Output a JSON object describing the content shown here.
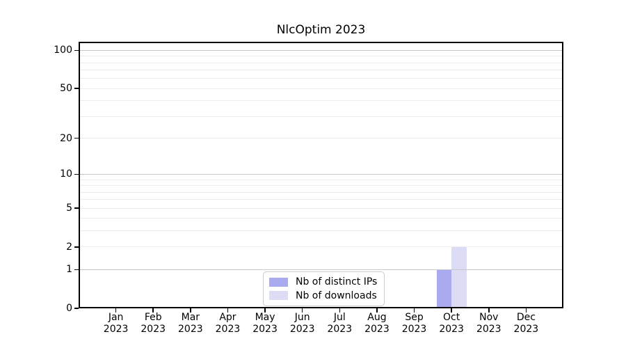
{
  "chart_data": {
    "type": "bar",
    "title": "NlcOptim 2023",
    "categories": [
      "Jan",
      "Feb",
      "Mar",
      "Apr",
      "May",
      "Jun",
      "Jul",
      "Aug",
      "Sep",
      "Oct",
      "Nov",
      "Dec"
    ],
    "category_year": "2023",
    "series": [
      {
        "name": "Nb of distinct IPs",
        "color": "#aaaaf0",
        "values": [
          0,
          0,
          0,
          0,
          0,
          0,
          0,
          0,
          0,
          1,
          0,
          0
        ]
      },
      {
        "name": "Nb of downloads",
        "color": "#dcdcf7",
        "values": [
          0,
          0,
          0,
          0,
          0,
          0,
          0,
          0,
          0,
          2,
          0,
          0
        ]
      }
    ],
    "y_axis": {
      "scale": "log1p",
      "tick_values": [
        0,
        1,
        2,
        5,
        10,
        20,
        50,
        100
      ],
      "tick_labels": [
        "0",
        "1",
        "2",
        "5",
        "10",
        "20",
        "50",
        "100"
      ],
      "major_grid_values": [
        1,
        10,
        100
      ],
      "minor_grid_values": [
        2,
        3,
        4,
        5,
        6,
        7,
        8,
        9,
        20,
        30,
        40,
        50,
        60,
        70,
        80,
        90
      ],
      "ylim": [
        0,
        117
      ]
    },
    "x_axis": {
      "xlim_units": [
        -1,
        12
      ]
    },
    "legend": {
      "position": "lower center inside"
    },
    "grid": "horizontal"
  },
  "style": {
    "background_color": "#ffffff",
    "axis_color": "#000000",
    "text_color": "#000000",
    "major_grid_color": "#c8c8c8",
    "minor_grid_color": "#ececec",
    "legend_border_color": "#cccccc",
    "bar_color_distinct_ips": "#aaaaf0",
    "bar_color_downloads": "#dcdcf7"
  }
}
